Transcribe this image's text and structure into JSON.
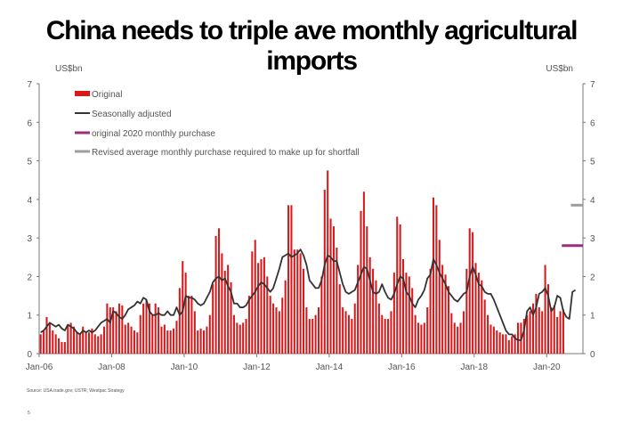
{
  "page": {
    "title": "China needs to triple ave monthly agricultural imports",
    "source": "Source: USA.trade.gov; USTR; Westpac Strategy",
    "page_number": "5"
  },
  "colors": {
    "original": "#d7191c",
    "seasonal": "#333333",
    "original_2020": "#9c2c7e",
    "revised": "#9e9e9e",
    "axis": "#777777"
  },
  "chart_data": {
    "type": "bar",
    "title": "China needs to triple ave monthly agricultural imports",
    "ylabel_left": "US$bn",
    "ylabel_right": "US$bn",
    "ylim": [
      0,
      7
    ],
    "yticks": [
      0,
      1,
      2,
      3,
      4,
      5,
      6,
      7
    ],
    "x_start": "Jan-06",
    "x_ticks": [
      {
        "label": "Jan-06",
        "index": 0
      },
      {
        "label": "Jan-08",
        "index": 24
      },
      {
        "label": "Jan-10",
        "index": 48
      },
      {
        "label": "Jan-12",
        "index": 72
      },
      {
        "label": "Jan-14",
        "index": 96
      },
      {
        "label": "Jan-16",
        "index": 120
      },
      {
        "label": "Jan-18",
        "index": 144
      },
      {
        "label": "Jan-20",
        "index": 168
      }
    ],
    "x_total_months": 180,
    "legend": [
      {
        "key": "original",
        "label": "Original"
      },
      {
        "key": "seasonal",
        "label": "Seasonally adjusted"
      },
      {
        "key": "original_2020",
        "label": "original 2020 monthly purchase"
      },
      {
        "key": "revised",
        "label": "Revised average monthly purchase required to make up for shortfall"
      }
    ],
    "series": [
      {
        "name": "Original",
        "type": "bar",
        "values": [
          0.5,
          0.6,
          0.95,
          0.8,
          0.6,
          0.5,
          0.4,
          0.3,
          0.3,
          0.75,
          0.8,
          0.7,
          0.55,
          0.5,
          0.7,
          0.55,
          0.55,
          0.65,
          0.5,
          0.45,
          0.5,
          0.7,
          1.3,
          1.2,
          1.2,
          1.1,
          1.3,
          1.25,
          0.75,
          0.8,
          0.7,
          0.6,
          0.55,
          1.0,
          1.3,
          1.4,
          1.3,
          1.0,
          1.3,
          1.2,
          0.7,
          0.75,
          0.6,
          0.6,
          0.65,
          0.85,
          1.7,
          2.4,
          2.1,
          1.5,
          1.5,
          1.1,
          0.6,
          0.65,
          0.6,
          0.7,
          1.0,
          1.8,
          3.05,
          3.25,
          2.6,
          2.15,
          2.3,
          1.85,
          1.0,
          0.8,
          0.75,
          0.8,
          0.9,
          1.5,
          2.65,
          2.95,
          2.35,
          2.45,
          2.5,
          2.0,
          1.5,
          1.3,
          1.2,
          1.1,
          1.45,
          1.9,
          3.85,
          3.85,
          2.7,
          2.7,
          2.6,
          2.2,
          1.2,
          0.9,
          0.9,
          1.0,
          1.2,
          2.0,
          4.25,
          4.75,
          3.5,
          3.3,
          2.75,
          1.8,
          1.2,
          1.1,
          1.0,
          0.9,
          1.3,
          2.3,
          3.7,
          4.2,
          3.3,
          2.5,
          2.2,
          1.9,
          1.3,
          1.0,
          0.9,
          0.9,
          1.1,
          2.1,
          3.55,
          3.35,
          2.45,
          2.1,
          2.0,
          1.7,
          1.0,
          0.8,
          0.75,
          0.8,
          1.2,
          2.2,
          4.05,
          3.85,
          2.95,
          2.3,
          2.05,
          1.75,
          1.05,
          0.8,
          0.7,
          0.8,
          1.1,
          2.2,
          3.25,
          3.15,
          2.35,
          2.1,
          1.9,
          1.4,
          1.0,
          0.75,
          0.7,
          0.6,
          0.55,
          0.5,
          0.5,
          0.35,
          0.45,
          0.5,
          0.8,
          0.8,
          0.9,
          1.0,
          1.1,
          1.3,
          1.55,
          1.2,
          1.1,
          2.3,
          1.8,
          1.2,
          1.25,
          0.95,
          1.1,
          1.15
        ]
      },
      {
        "name": "Seasonally adjusted",
        "type": "line",
        "values": [
          0.55,
          0.6,
          0.7,
          0.8,
          0.75,
          0.7,
          0.75,
          0.65,
          0.6,
          0.75,
          0.7,
          0.65,
          0.55,
          0.5,
          0.6,
          0.55,
          0.6,
          0.55,
          0.6,
          0.7,
          0.8,
          0.85,
          0.9,
          0.8,
          1.1,
          1.05,
          0.95,
          0.9,
          1.0,
          1.15,
          1.2,
          1.25,
          1.35,
          1.3,
          1.45,
          1.4,
          1.1,
          1.0,
          1.0,
          1.05,
          1.0,
          1.0,
          1.1,
          1.0,
          1.0,
          1.2,
          1.0,
          1.1,
          1.5,
          1.45,
          1.45,
          1.4,
          1.3,
          1.25,
          1.3,
          1.45,
          1.6,
          1.85,
          1.95,
          2.0,
          1.9,
          1.95,
          1.75,
          1.6,
          1.3,
          1.3,
          1.2,
          1.2,
          1.25,
          1.4,
          1.5,
          1.6,
          1.75,
          1.85,
          1.8,
          1.7,
          1.6,
          1.7,
          1.95,
          2.2,
          2.5,
          2.55,
          2.6,
          2.5,
          2.55,
          2.6,
          2.7,
          2.55,
          2.3,
          1.9,
          1.8,
          1.7,
          1.7,
          1.9,
          2.3,
          2.55,
          2.5,
          2.4,
          2.4,
          2.1,
          1.8,
          1.6,
          1.55,
          1.6,
          1.65,
          1.85,
          2.05,
          2.25,
          2.2,
          1.9,
          1.6,
          1.55,
          1.6,
          1.8,
          1.6,
          1.45,
          1.4,
          1.55,
          1.8,
          2.0,
          1.95,
          1.6,
          1.5,
          1.3,
          1.2,
          1.4,
          1.5,
          1.65,
          1.95,
          2.05,
          2.45,
          2.3,
          2.1,
          1.95,
          1.8,
          1.6,
          1.5,
          1.4,
          1.35,
          1.45,
          1.55,
          1.6,
          2.0,
          2.25,
          2.05,
          1.8,
          1.75,
          1.6,
          1.55,
          1.55,
          1.4,
          1.2,
          1.0,
          0.8,
          0.6,
          0.5,
          0.5,
          0.4,
          0.35,
          0.35,
          0.6,
          1.1,
          1.2,
          1.0,
          1.2,
          1.55,
          1.6,
          1.7,
          1.5,
          1.1,
          1.2,
          1.5,
          1.45,
          1.1,
          0.95,
          0.9,
          1.6,
          1.65
        ]
      },
      {
        "name": "original 2020 monthly purchase",
        "type": "hline",
        "value": 2.8,
        "start_index": 173,
        "end_index": 181
      },
      {
        "name": "Revised average monthly purchase required to make up for shortfall",
        "type": "hline",
        "value": 3.85,
        "start_index": 176,
        "end_index": 181
      }
    ]
  }
}
